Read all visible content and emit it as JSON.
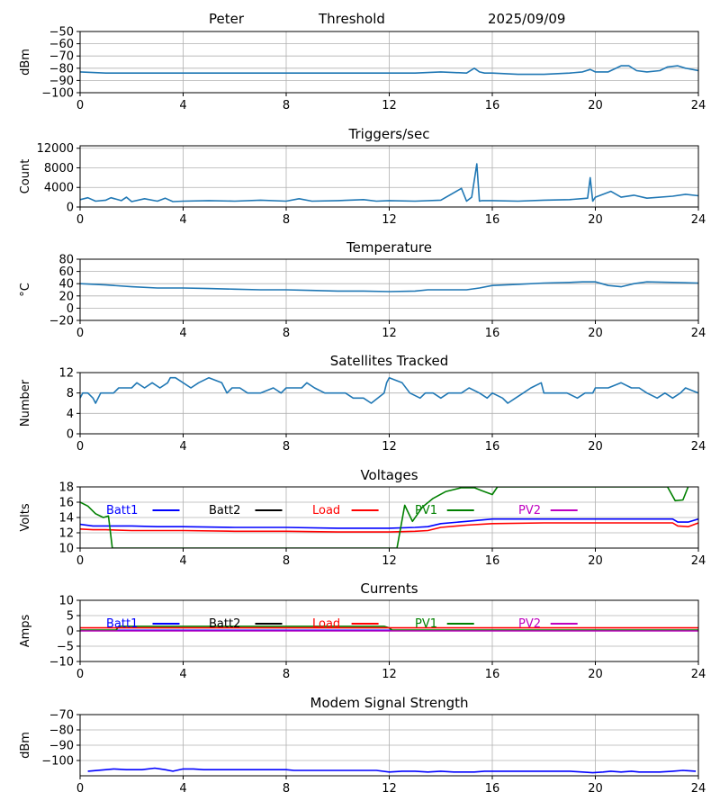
{
  "header": {
    "name": "Peter",
    "mode": "Threshold",
    "date": "2025/09/09"
  },
  "colors": {
    "default_line": "#1f77b4",
    "batt1": "#0000ff",
    "batt2": "#000000",
    "load": "#ff0000",
    "pv1": "#008000",
    "pv2": "#bf00bf",
    "grid": "#b0b0b0"
  },
  "chart_data": [
    {
      "id": "signal",
      "type": "line",
      "title": "",
      "xlabel": "",
      "ylabel": "dBm",
      "xlim": [
        0,
        24
      ],
      "ylim": [
        -100,
        -50
      ],
      "xticks": [
        0,
        4,
        8,
        12,
        16,
        20,
        24
      ],
      "yticks": [
        -100,
        -90,
        -80,
        -70,
        -60,
        -50
      ],
      "grid": true,
      "series": [
        {
          "color": "default_line",
          "x": [
            0,
            1,
            2,
            3,
            4,
            5,
            6,
            7,
            8,
            9,
            10,
            11,
            12,
            13,
            14,
            15,
            15.3,
            15.5,
            15.7,
            16,
            17,
            18,
            19,
            19.5,
            19.8,
            20,
            20.5,
            21,
            21.3,
            21.6,
            22,
            22.5,
            22.8,
            23.2,
            23.5,
            24
          ],
          "y": [
            -83,
            -84,
            -84,
            -84,
            -84,
            -84,
            -84,
            -84,
            -84,
            -84,
            -84,
            -84,
            -84,
            -84,
            -83,
            -84,
            -80,
            -83,
            -84,
            -84,
            -85,
            -85,
            -84,
            -83,
            -81,
            -83,
            -83,
            -78,
            -78,
            -82,
            -83,
            -82,
            -79,
            -78,
            -80,
            -82
          ]
        }
      ]
    },
    {
      "id": "triggers",
      "type": "line",
      "title": "Triggers/sec",
      "xlabel": "",
      "ylabel": "Count",
      "xlim": [
        0,
        24
      ],
      "ylim": [
        0,
        12500
      ],
      "xticks": [
        0,
        4,
        8,
        12,
        16,
        20,
        24
      ],
      "yticks": [
        0,
        4000,
        8000,
        12000
      ],
      "grid": true,
      "series": [
        {
          "color": "default_line",
          "x": [
            0,
            0.3,
            0.6,
            1,
            1.2,
            1.6,
            1.8,
            2,
            2.5,
            3,
            3.3,
            3.6,
            4,
            5,
            6,
            7,
            8,
            8.5,
            9,
            10,
            11,
            11.5,
            12,
            13,
            14,
            14.8,
            15,
            15.2,
            15.4,
            15.5,
            15.6,
            16,
            17,
            18,
            19,
            19.7,
            19.8,
            19.9,
            20,
            20.6,
            21,
            21.5,
            22,
            23,
            23.5,
            24
          ],
          "y": [
            1500,
            1900,
            1200,
            1400,
            1900,
            1300,
            2000,
            1100,
            1700,
            1200,
            1800,
            1100,
            1200,
            1300,
            1200,
            1400,
            1200,
            1700,
            1200,
            1300,
            1500,
            1200,
            1300,
            1200,
            1400,
            3800,
            1200,
            2000,
            8800,
            1200,
            1300,
            1300,
            1200,
            1400,
            1500,
            1800,
            6000,
            1200,
            2000,
            3200,
            2000,
            2400,
            1800,
            2200,
            2600,
            2300
          ]
        }
      ]
    },
    {
      "id": "temperature",
      "type": "line",
      "title": "Temperature",
      "xlabel": "",
      "ylabel": "°C",
      "xlim": [
        0,
        24
      ],
      "ylim": [
        -20,
        80
      ],
      "xticks": [
        0,
        4,
        8,
        12,
        16,
        20,
        24
      ],
      "yticks": [
        -20,
        0,
        20,
        40,
        60,
        80
      ],
      "grid": true,
      "series": [
        {
          "color": "default_line",
          "x": [
            0,
            1,
            2,
            3,
            4,
            5,
            6,
            7,
            8,
            9,
            10,
            11,
            12,
            13,
            13.5,
            14,
            15,
            15.5,
            16,
            17,
            18,
            19,
            19.5,
            20,
            20.5,
            21,
            21.5,
            22,
            23,
            24
          ],
          "y": [
            40,
            38,
            35,
            33,
            33,
            32,
            31,
            30,
            30,
            29,
            28,
            28,
            27,
            28,
            30,
            30,
            30,
            33,
            37,
            39,
            41,
            42,
            43,
            43,
            37,
            35,
            40,
            43,
            42,
            41
          ]
        }
      ]
    },
    {
      "id": "satellites",
      "type": "line",
      "title": "Satellites Tracked",
      "xlabel": "",
      "ylabel": "Number",
      "xlim": [
        0,
        24
      ],
      "ylim": [
        0,
        12
      ],
      "xticks": [
        0,
        4,
        8,
        12,
        16,
        20,
        24
      ],
      "yticks": [
        0,
        4,
        8,
        12
      ],
      "grid": true,
      "series": [
        {
          "color": "default_line",
          "x": [
            0,
            0.1,
            0.3,
            0.5,
            0.6,
            0.8,
            1,
            1.3,
            1.5,
            2,
            2.2,
            2.5,
            2.8,
            3.1,
            3.4,
            3.5,
            3.7,
            4,
            4.3,
            4.6,
            5,
            5.5,
            5.7,
            5.9,
            6.2,
            6.5,
            7,
            7.5,
            7.8,
            8,
            8.6,
            8.8,
            9.1,
            9.5,
            10,
            10.3,
            10.6,
            11,
            11.3,
            11.8,
            11.9,
            12,
            12.5,
            12.8,
            13.2,
            13.4,
            13.7,
            14,
            14.3,
            14.8,
            15.1,
            15.5,
            15.8,
            16,
            16.4,
            16.6,
            16.9,
            17.2,
            17.5,
            17.9,
            18,
            18.5,
            18.9,
            19.3,
            19.6,
            19.9,
            20,
            20.5,
            21,
            21.4,
            21.7,
            22,
            22.4,
            22.7,
            23,
            23.3,
            23.5,
            24
          ],
          "y": [
            7,
            8,
            8,
            7,
            6,
            8,
            8,
            8,
            9,
            9,
            10,
            9,
            10,
            9,
            10,
            11,
            11,
            10,
            9,
            10,
            11,
            10,
            8,
            9,
            9,
            8,
            8,
            9,
            8,
            9,
            9,
            10,
            9,
            8,
            8,
            8,
            7,
            7,
            6,
            8,
            10,
            11,
            10,
            8,
            7,
            8,
            8,
            7,
            8,
            8,
            9,
            8,
            7,
            8,
            7,
            6,
            7,
            8,
            9,
            10,
            8,
            8,
            8,
            7,
            8,
            8,
            9,
            9,
            10,
            9,
            9,
            8,
            7,
            8,
            7,
            8,
            9,
            8
          ]
        }
      ]
    },
    {
      "id": "voltages",
      "type": "line",
      "title": "Voltages",
      "xlabel": "",
      "ylabel": "Volts",
      "xlim": [
        0,
        24
      ],
      "ylim": [
        10,
        18
      ],
      "xticks": [
        0,
        4,
        8,
        12,
        16,
        20,
        24
      ],
      "yticks": [
        10,
        12,
        14,
        16,
        18
      ],
      "grid": true,
      "legend": [
        "batt1",
        "batt2",
        "load",
        "pv1",
        "pv2"
      ],
      "series": [
        {
          "name": "Batt1",
          "key": "batt1",
          "x": [
            0,
            0.5,
            1,
            2,
            3,
            4,
            6,
            8,
            10,
            12,
            13,
            13.5,
            14,
            15,
            16,
            18,
            20,
            22,
            23,
            23.2,
            23.6,
            24
          ],
          "y": [
            13.1,
            12.9,
            12.9,
            12.9,
            12.8,
            12.8,
            12.7,
            12.7,
            12.6,
            12.6,
            12.7,
            12.8,
            13.2,
            13.5,
            13.8,
            13.8,
            13.8,
            13.8,
            13.8,
            13.4,
            13.4,
            13.8
          ]
        },
        {
          "name": "Batt2",
          "key": "batt2",
          "x": [],
          "y": []
        },
        {
          "name": "Load",
          "key": "load",
          "x": [
            0,
            0.5,
            1,
            2,
            4,
            6,
            8,
            10,
            12,
            13,
            13.5,
            14,
            15,
            16,
            18,
            20,
            22,
            23,
            23.2,
            23.6,
            24
          ],
          "y": [
            12.5,
            12.4,
            12.4,
            12.3,
            12.3,
            12.2,
            12.2,
            12.1,
            12.1,
            12.2,
            12.3,
            12.7,
            13.0,
            13.2,
            13.3,
            13.3,
            13.3,
            13.3,
            12.9,
            12.8,
            13.3
          ]
        },
        {
          "name": "PV1",
          "key": "pv1",
          "x": [
            0,
            0.3,
            0.6,
            0.9,
            1.1,
            1.25,
            12.3,
            12.6,
            12.9,
            13.3,
            13.7,
            14.2,
            14.8,
            15.3,
            15.6,
            16,
            16.2,
            22.8,
            23.1,
            23.4,
            23.6
          ],
          "y": [
            16.0,
            15.5,
            14.5,
            14.0,
            14.2,
            10.0,
            10.0,
            15.6,
            13.5,
            15.4,
            16.5,
            17.4,
            17.9,
            17.9,
            17.5,
            17.0,
            18.0,
            18.0,
            16.2,
            16.3,
            18.0
          ]
        },
        {
          "name": "PV2",
          "key": "pv2",
          "x": [],
          "y": []
        }
      ]
    },
    {
      "id": "currents",
      "type": "line",
      "title": "Currents",
      "xlabel": "",
      "ylabel": "Amps",
      "xlim": [
        0,
        24
      ],
      "ylim": [
        -10,
        10
      ],
      "xticks": [
        0,
        4,
        8,
        12,
        16,
        20,
        24
      ],
      "yticks": [
        -10,
        -5,
        0,
        5,
        10
      ],
      "grid": true,
      "legend": [
        "batt1",
        "batt2",
        "load",
        "pv1",
        "pv2"
      ],
      "series": [
        {
          "name": "Batt1",
          "key": "batt1",
          "x": [
            0,
            24
          ],
          "y": [
            0.2,
            0.2
          ]
        },
        {
          "name": "Batt2",
          "key": "batt2",
          "x": [],
          "y": []
        },
        {
          "name": "PV1",
          "key": "pv1",
          "x": [
            0,
            1.4,
            1.5,
            4,
            8,
            11.8,
            12,
            12.1,
            24
          ],
          "y": [
            0.3,
            0.3,
            1.5,
            1.5,
            1.5,
            1.5,
            1.0,
            0.3,
            0.3
          ]
        },
        {
          "name": "Load",
          "key": "load",
          "x": [
            0,
            4,
            8,
            12,
            16,
            20,
            24
          ],
          "y": [
            1.0,
            1.0,
            1.0,
            1.0,
            1.0,
            1.0,
            1.0
          ]
        },
        {
          "name": "PV2",
          "key": "pv2",
          "x": [
            0,
            24
          ],
          "y": [
            0.0,
            0.0
          ]
        }
      ]
    },
    {
      "id": "modem",
      "type": "line",
      "title": "Modem Signal Strength",
      "xlabel": "",
      "ylabel": "dBm",
      "xlim": [
        0,
        24
      ],
      "ylim": [
        -110,
        -70
      ],
      "xticks": [
        0,
        4,
        8,
        12,
        16,
        20,
        24
      ],
      "yticks": [
        -100,
        -90,
        -80,
        -70
      ],
      "grid": true,
      "series": [
        {
          "color": "batt1",
          "x": [
            0.3,
            1,
            1.3,
            1.8,
            2.4,
            2.9,
            3.3,
            3.6,
            4,
            4.4,
            4.8,
            5.5,
            6,
            7,
            8,
            8.3,
            9,
            10,
            11,
            11.5,
            12,
            12.5,
            13,
            13.5,
            14,
            14.5,
            15,
            15.3,
            15.7,
            16,
            17,
            18,
            19,
            19.5,
            19.9,
            20.3,
            20.6,
            21,
            21.4,
            21.7,
            22,
            22.5,
            23,
            23.4,
            23.9
          ],
          "y": [
            -107,
            -106,
            -105.5,
            -106,
            -106,
            -105,
            -106,
            -107,
            -105.5,
            -105.5,
            -106,
            -106,
            -106,
            -106,
            -106,
            -106.5,
            -106.5,
            -106.5,
            -106.5,
            -106.5,
            -107.5,
            -107,
            -107,
            -107.5,
            -107,
            -107.5,
            -107.5,
            -107.5,
            -107,
            -107,
            -107,
            -107,
            -107,
            -107.5,
            -108,
            -107.5,
            -107,
            -107.5,
            -107,
            -107.5,
            -107.5,
            -107.5,
            -107,
            -106.5,
            -107
          ]
        }
      ]
    }
  ]
}
